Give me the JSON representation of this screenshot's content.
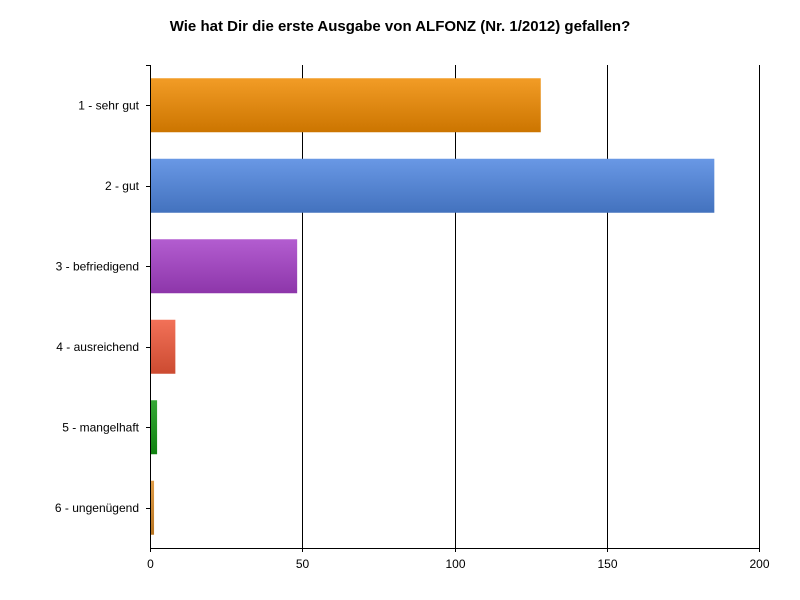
{
  "chart_data": {
    "type": "bar",
    "orientation": "horizontal",
    "title": "Wie hat Dir die erste Ausgabe von ALFONZ (Nr. 1/2012) gefallen?",
    "xlabel": "",
    "ylabel": "",
    "categories": [
      "1 - sehr gut",
      "2 - gut",
      "3 - befriedigend",
      "4 - ausreichend",
      "5 - mangelhaft",
      "6 - ungenügend"
    ],
    "values": [
      128,
      185,
      48,
      8,
      2,
      1
    ],
    "colors": [
      "#f08a00",
      "#4f86e0",
      "#a640c8",
      "#f0583a",
      "#129812",
      "#d98a28"
    ],
    "xlim": [
      0,
      200
    ],
    "xticks": [
      "0",
      "50",
      "100",
      "150",
      "200"
    ],
    "grid": true
  }
}
